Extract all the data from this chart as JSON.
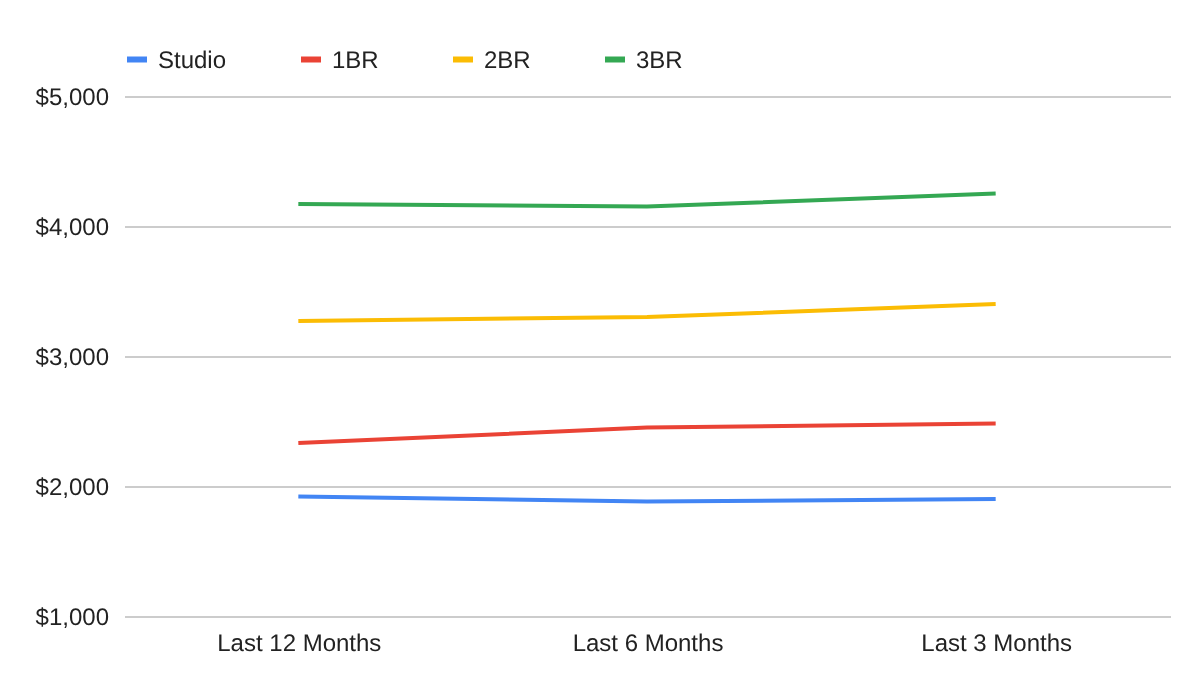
{
  "chart_data": {
    "type": "line",
    "categories": [
      "Last 12 Months",
      "Last 6 Months",
      "Last 3 Months"
    ],
    "series": [
      {
        "name": "Studio",
        "color": "#4285f4",
        "values": [
          1920,
          1880,
          1900
        ]
      },
      {
        "name": "1BR",
        "color": "#ea4335",
        "values": [
          2330,
          2450,
          2480
        ]
      },
      {
        "name": "2BR",
        "color": "#fbbc04",
        "values": [
          3270,
          3300,
          3400
        ]
      },
      {
        "name": "3BR",
        "color": "#34a853",
        "values": [
          4170,
          4150,
          4250
        ]
      }
    ],
    "ylim": [
      1000,
      5000
    ],
    "yticks": [
      {
        "value": 1000,
        "label": "$1,000"
      },
      {
        "value": 2000,
        "label": "$2,000"
      },
      {
        "value": 3000,
        "label": "$3,000"
      },
      {
        "value": 4000,
        "label": "$4,000"
      },
      {
        "value": 5000,
        "label": "$5,000"
      }
    ],
    "grid": "y",
    "legend": "top",
    "marker": "none",
    "line_style": "solid"
  }
}
